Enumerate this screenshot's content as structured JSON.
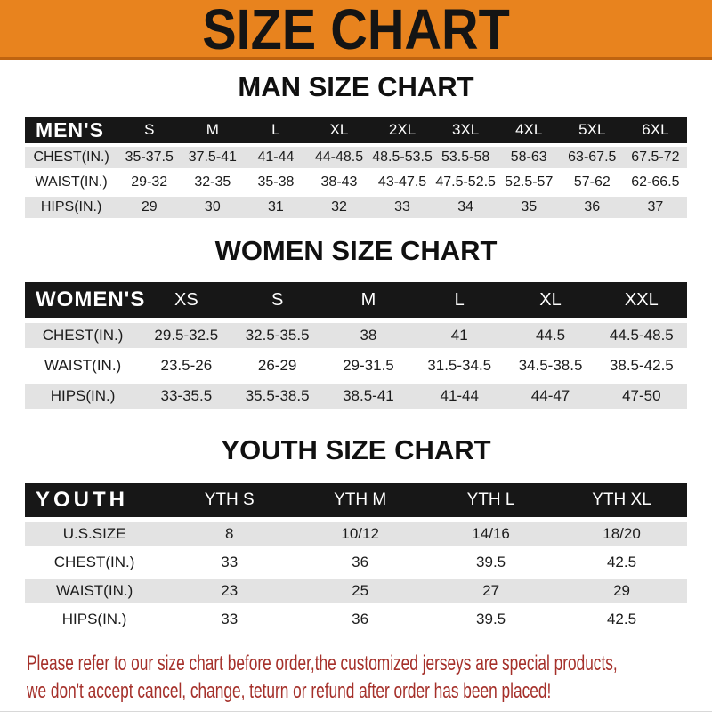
{
  "banner": {
    "title": "SIZE CHART",
    "bg_color": "#E8831E",
    "edge_color": "#BF6410",
    "text_color": "#141414"
  },
  "colors": {
    "table_header_bg": "#171717",
    "table_header_text": "#ffffff",
    "row_alt_bg": "#E3E3E3",
    "disclaimer_text": "#A5302A"
  },
  "sections": [
    {
      "heading": "MAN SIZE CHART",
      "table": {
        "header": {
          "label": "MEN'S",
          "columns": [
            "S",
            "M",
            "L",
            "XL",
            "2XL",
            "3XL",
            "4XL",
            "5XL",
            "6XL"
          ]
        },
        "rows": [
          {
            "label": "CHEST(IN.)",
            "values": [
              "35-37.5",
              "37.5-41",
              "41-44",
              "44-48.5",
              "48.5-53.5",
              "53.5-58",
              "58-63",
              "63-67.5",
              "67.5-72"
            ]
          },
          {
            "label": "WAIST(IN.)",
            "values": [
              "29-32",
              "32-35",
              "35-38",
              "38-43",
              "43-47.5",
              "47.5-52.5",
              "52.5-57",
              "57-62",
              "62-66.5"
            ]
          },
          {
            "label": "HIPS(IN.)",
            "values": [
              "29",
              "30",
              "31",
              "32",
              "33",
              "34",
              "35",
              "36",
              "37"
            ]
          }
        ]
      }
    },
    {
      "heading": "WOMEN SIZE CHART",
      "table": {
        "header": {
          "label": "WOMEN'S",
          "columns": [
            "XS",
            "S",
            "M",
            "L",
            "XL",
            "XXL"
          ]
        },
        "rows": [
          {
            "label": "CHEST(IN.)",
            "values": [
              "29.5-32.5",
              "32.5-35.5",
              "38",
              "41",
              "44.5",
              "44.5-48.5"
            ]
          },
          {
            "label": "WAIST(IN.)",
            "values": [
              "23.5-26",
              "26-29",
              "29-31.5",
              "31.5-34.5",
              "34.5-38.5",
              "38.5-42.5"
            ]
          },
          {
            "label": "HIPS(IN.)",
            "values": [
              "33-35.5",
              "35.5-38.5",
              "38.5-41",
              "41-44",
              "44-47",
              "47-50"
            ]
          }
        ]
      }
    },
    {
      "heading": "YOUTH SIZE CHART",
      "table": {
        "header": {
          "label": "YOUTH",
          "columns": [
            "YTH S",
            "YTH M",
            "YTH L",
            "YTH XL"
          ]
        },
        "rows": [
          {
            "label": "U.S.SIZE",
            "values": [
              "8",
              "10/12",
              "14/16",
              "18/20"
            ]
          },
          {
            "label": "CHEST(IN.)",
            "values": [
              "33",
              "36",
              "39.5",
              "42.5"
            ]
          },
          {
            "label": "WAIST(IN.)",
            "values": [
              "23",
              "25",
              "27",
              "29"
            ]
          },
          {
            "label": "HIPS(IN.)",
            "values": [
              "33",
              "36",
              "39.5",
              "42.5"
            ]
          }
        ]
      }
    }
  ],
  "disclaimer": {
    "lines": [
      "Please refer to our size chart before order,the customized jerseys are special products,",
      "we don't accept cancel, change, teturn or refund after order has been placed!"
    ]
  }
}
